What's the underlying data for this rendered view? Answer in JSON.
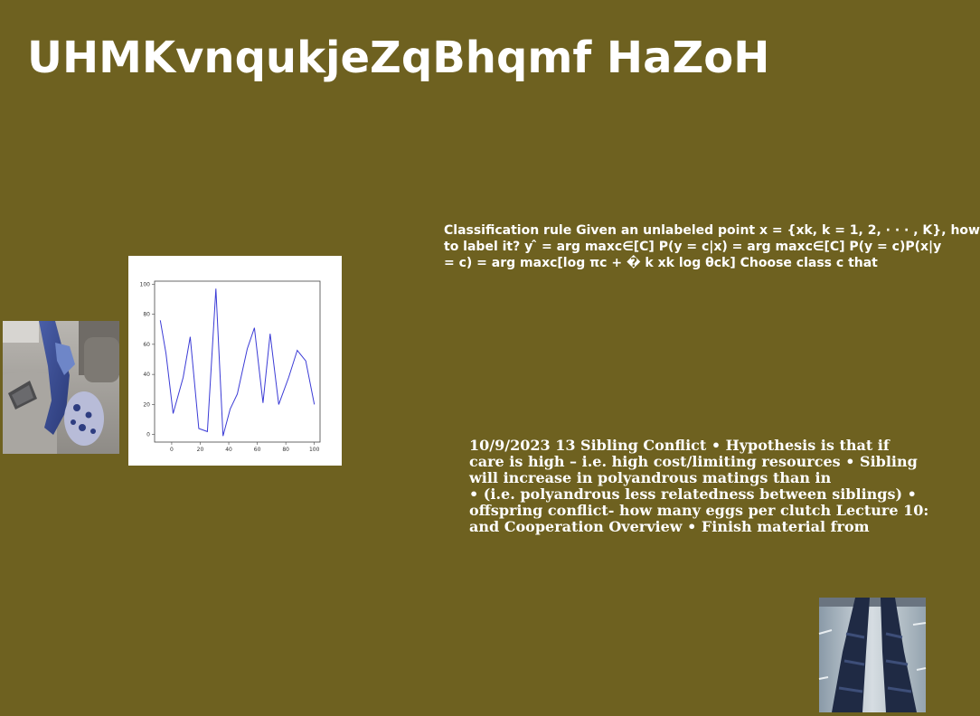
{
  "page": {
    "background_color": "#6e6120",
    "title": "UHMKvnqukjeZqBhqmf HaZoH"
  },
  "text_block_1": {
    "lines": [
      "Classification rule Given an unlabeled point x = {xk, k = 1, 2, · · · , K}, how",
      "to label it? y ̂ = arg maxc∈[C] P(y = c|x) = arg maxc∈[C] P(y = c)P(x|y",
      "= c) = arg maxc[log πc + � k xk log θck] Choose class c that"
    ]
  },
  "text_block_2": {
    "lines": [
      "10/9/2023 13 Sibling Conflict • Hypothesis is that if",
      "care is high – i.e. high cost/limiting resources • Sibling",
      "will increase in polyandrous matings than in",
      "• (i.e. polyandrous less relatedness between siblings) •",
      "offspring conflict- how many eggs per clutch Lecture 10:",
      "and Cooperation Overview • Finish material from"
    ]
  },
  "images": {
    "left_photo": "photo of a person in blue clothing sitting on a sofa with a laptop",
    "right_photo": "photo of legs in dark patterned leggings"
  },
  "chart_data": {
    "type": "line",
    "line_color": "#3b3bd6",
    "x": [
      -8,
      -4,
      1,
      8,
      13,
      19,
      25,
      31,
      36,
      41,
      46,
      53,
      58,
      64,
      69,
      75,
      82,
      88,
      94,
      100
    ],
    "y": [
      76,
      54,
      14,
      38,
      65,
      4,
      2,
      97,
      -1,
      17,
      27,
      57,
      71,
      21,
      67,
      20,
      38,
      56,
      49,
      20
    ],
    "xlim": [
      -12,
      104
    ],
    "ylim": [
      -5,
      102
    ],
    "xticks": [
      "0",
      "20",
      "40",
      "60",
      "80",
      "100"
    ],
    "xtick_values": [
      0,
      20,
      40,
      60,
      80,
      100
    ],
    "yticks": [
      "0",
      "20",
      "40",
      "60",
      "80",
      "100"
    ],
    "ytick_values": [
      0,
      20,
      40,
      60,
      80,
      100
    ],
    "grid": false
  }
}
